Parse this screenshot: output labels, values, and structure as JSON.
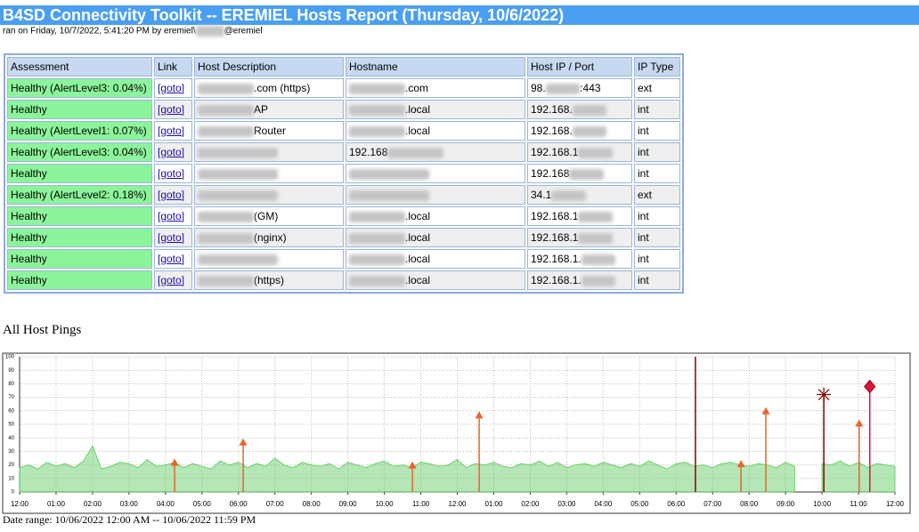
{
  "header": {
    "title": "B4SD Connectivity Toolkit -- EREMIEL Hosts Report (Thursday, 10/6/2022)",
    "subtitle": [
      "ran on Friday, 10/7/2022, 5:41:20 PM by eremiel\\",
      "@eremiel"
    ]
  },
  "table": {
    "columns": [
      "Assessment",
      "Link",
      "Host Description",
      "Hostname",
      "Host IP / Port",
      "IP Type"
    ],
    "rows": [
      [
        "Healthy (AlertLevel3: 0.04%)",
        "[goto]",
        [
          ".com (https)"
        ],
        [
          ".com"
        ],
        [
          "98.",
          ":443"
        ],
        "ext"
      ],
      [
        "Healthy",
        "[goto]",
        [
          "AP"
        ],
        [
          ".local"
        ],
        [
          "192.168."
        ],
        "int"
      ],
      [
        "Healthy (AlertLevel1: 0.07%)",
        "[goto]",
        [
          "Router"
        ],
        [
          ".local"
        ],
        [
          "192.168."
        ],
        "int"
      ],
      [
        "Healthy (AlertLevel3: 0.04%)",
        "[goto]",
        [],
        [
          "192.168"
        ],
        [
          "192.168.1"
        ],
        "int"
      ],
      [
        "Healthy",
        "[goto]",
        [],
        [],
        [
          "192.168"
        ],
        "int"
      ],
      [
        "Healthy (AlertLevel2: 0.18%)",
        "[goto]",
        [],
        [],
        [
          "34.1"
        ],
        "ext"
      ],
      [
        "Healthy",
        "[goto]",
        [
          "(GM)"
        ],
        [
          ".local"
        ],
        [
          "192.168.1"
        ],
        "int"
      ],
      [
        "Healthy",
        "[goto]",
        [
          "(nginx)"
        ],
        [
          ".local"
        ],
        [
          "192.168.1"
        ],
        "int"
      ],
      [
        "Healthy",
        "[goto]",
        [],
        [
          ".local"
        ],
        [
          "192.168.1."
        ],
        "int"
      ],
      [
        "Healthy",
        "[goto]",
        [
          "(https)"
        ],
        [
          ".local"
        ],
        [
          "192.168.1."
        ],
        "int"
      ]
    ]
  },
  "chart_data": {
    "type": "area",
    "title": "All Host Pings",
    "footer": "Date range: 10/06/2022 12:00 AM -- 10/06/2022 11:59 PM",
    "grid": true,
    "xlim": [
      0,
      24
    ],
    "xticks": [
      {
        "value": 0,
        "label": "12:00"
      },
      {
        "value": 1,
        "label": "01:00"
      },
      {
        "value": 2,
        "label": "02:00"
      },
      {
        "value": 3,
        "label": "03:00"
      },
      {
        "value": 4,
        "label": "04:00"
      },
      {
        "value": 5,
        "label": "05:00"
      },
      {
        "value": 6,
        "label": "06:00"
      },
      {
        "value": 7,
        "label": "07:00"
      },
      {
        "value": 8,
        "label": "08:00"
      },
      {
        "value": 9,
        "label": "09:00"
      },
      {
        "value": 10,
        "label": "10:00"
      },
      {
        "value": 11,
        "label": "11:00"
      },
      {
        "value": 12,
        "label": "12:00"
      },
      {
        "value": 13,
        "label": "01:00"
      },
      {
        "value": 14,
        "label": "02:00"
      },
      {
        "value": 15,
        "label": "03:00"
      },
      {
        "value": 16,
        "label": "04:00"
      },
      {
        "value": 17,
        "label": "05:00"
      },
      {
        "value": 18,
        "label": "06:00"
      },
      {
        "value": 19,
        "label": "07:00"
      },
      {
        "value": 20,
        "label": "08:00"
      },
      {
        "value": 21,
        "label": "09:00"
      },
      {
        "value": 22,
        "label": "10:00"
      },
      {
        "value": 23,
        "label": "11:00"
      },
      {
        "value": 24,
        "label": "12:00"
      }
    ],
    "ylim": [
      0,
      100
    ],
    "yticks": [
      0,
      10,
      20,
      30,
      40,
      50,
      60,
      70,
      80,
      90,
      100
    ],
    "x": [
      0,
      0.25,
      0.5,
      0.75,
      1,
      1.25,
      1.5,
      1.75,
      2,
      2.25,
      2.5,
      2.75,
      3,
      3.25,
      3.5,
      3.75,
      4,
      4.25,
      4.5,
      4.75,
      5,
      5.25,
      5.5,
      5.75,
      6,
      6.25,
      6.5,
      6.75,
      7,
      7.25,
      7.5,
      7.75,
      8,
      8.25,
      8.5,
      8.75,
      9,
      9.25,
      9.5,
      9.75,
      10,
      10.25,
      10.5,
      10.75,
      11,
      11.25,
      11.5,
      11.75,
      12,
      12.25,
      12.5,
      12.75,
      13,
      13.25,
      13.5,
      13.75,
      14,
      14.25,
      14.5,
      14.75,
      15,
      15.25,
      15.5,
      15.75,
      16,
      16.25,
      16.5,
      16.75,
      17,
      17.25,
      17.5,
      17.75,
      18,
      18.25,
      18.5,
      18.75,
      19,
      19.25,
      19.5,
      19.75,
      20,
      20.25,
      20.5,
      20.75,
      21,
      21.25,
      21.5,
      21.75,
      22,
      22.25,
      22.5,
      22.75,
      23,
      23.25,
      23.5,
      23.75,
      24
    ],
    "series": [
      {
        "color": "#5cc85c",
        "values": [
          18,
          20,
          17,
          22,
          19,
          21,
          18,
          23,
          34,
          17,
          19,
          22,
          21,
          18,
          24,
          19,
          20,
          22,
          18,
          21,
          19,
          17,
          23,
          20,
          22,
          18,
          21,
          19,
          25,
          20,
          18,
          22,
          20,
          19,
          21,
          17,
          22,
          20,
          18,
          21,
          23,
          19,
          20,
          18,
          22,
          21,
          19,
          20,
          24,
          18,
          21,
          20,
          22,
          19,
          18,
          21,
          20,
          23,
          19,
          22,
          18,
          20,
          21,
          19,
          22,
          20,
          18,
          21,
          19,
          23,
          20,
          17,
          21,
          22,
          19,
          20,
          18,
          21,
          22,
          20,
          19,
          21,
          20,
          18,
          22,
          19,
          null,
          null,
          21,
          20,
          23,
          19,
          22,
          18,
          21,
          20,
          19
        ]
      }
    ],
    "events": [
      {
        "marker": "triangle",
        "color": "#e8642c",
        "x": [
          4.25,
          6.13,
          10.77,
          12.6,
          19.78,
          20.46,
          23.02
        ],
        "values": [
          22,
          37,
          20,
          57,
          21,
          60,
          51
        ]
      },
      {
        "marker": "line",
        "color": "#8b0000",
        "x": [
          18.53
        ],
        "values": [
          100
        ]
      },
      {
        "marker": "star",
        "color": "#8b0000",
        "x": [
          22.05
        ],
        "values": [
          72
        ]
      },
      {
        "marker": "diamond",
        "color": "#dc143c",
        "x": [
          23.31
        ],
        "values": [
          78
        ]
      }
    ]
  }
}
